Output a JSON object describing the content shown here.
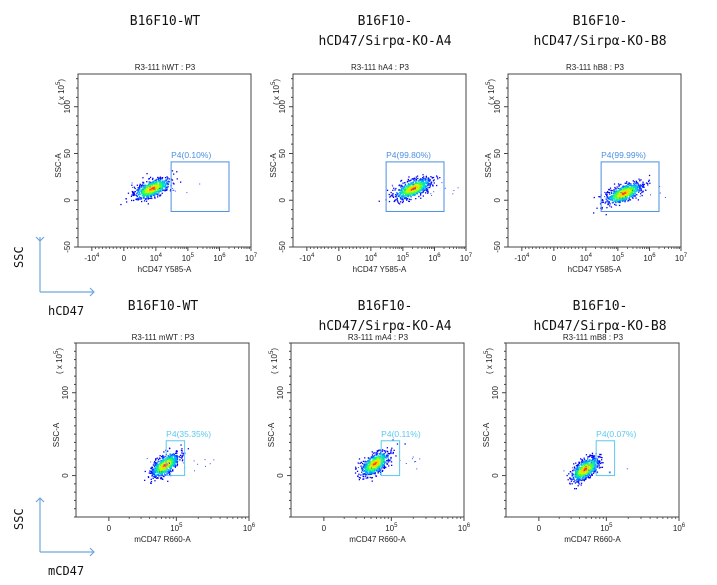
{
  "chart_data": [
    {
      "type": "scatter",
      "row": "hCD47",
      "title": "B16F10-WT",
      "subtitle": "R3-111 hWT : P3",
      "xlabel": "hCD47 Y585-A",
      "ylabel": "SSC-A",
      "y_multiplier_label": "(x 10^5)",
      "x_scale": "biexponential",
      "x_ticks": [
        "-10^4",
        "0",
        "10^4",
        "10^5",
        "10^6",
        "10^7"
      ],
      "y_ticks": [
        -50,
        0,
        50,
        100
      ],
      "ylim": [
        -50,
        135
      ],
      "gate": {
        "name": "P4",
        "percent": "0.10%",
        "label": "P4(0.10%)",
        "x_range": [
          "3x10^4",
          "2x10^6"
        ],
        "y_range": [
          -12,
          41
        ],
        "color": "#4a90e2"
      },
      "population_center": {
        "x": "4x10^3",
        "y": 13
      }
    },
    {
      "type": "scatter",
      "row": "hCD47",
      "title": "B16F10-\nhCD47/Sirpα-KO-A4",
      "subtitle": "R3-111 hA4 : P3",
      "xlabel": "hCD47 Y585-A",
      "ylabel": "SSC-A",
      "y_multiplier_label": "(x 10^5)",
      "x_scale": "biexponential",
      "x_ticks": [
        "-10^4",
        "0",
        "10^4",
        "10^5",
        "10^6",
        "10^7"
      ],
      "y_ticks": [
        -50,
        0,
        50,
        100
      ],
      "ylim": [
        -50,
        135
      ],
      "gate": {
        "name": "P4",
        "percent": "99.80%",
        "label": "P4(99.80%)",
        "x_range": [
          "3x10^4",
          "2x10^6"
        ],
        "y_range": [
          -12,
          41
        ],
        "color": "#4a90e2"
      },
      "population_center": {
        "x": "2x10^5",
        "y": 13
      }
    },
    {
      "type": "scatter",
      "row": "hCD47",
      "title": "B16F10-\nhCD47/Sirpα-KO-B8",
      "subtitle": "R3-111 hB8 : P3",
      "xlabel": "hCD47 Y585-A",
      "ylabel": "SSC-A",
      "y_multiplier_label": "(x 10^5)",
      "x_scale": "biexponential",
      "x_ticks": [
        "-10^4",
        "0",
        "10^4",
        "10^5",
        "10^6",
        "10^7"
      ],
      "y_ticks": [
        -50,
        0,
        50,
        100
      ],
      "ylim": [
        -50,
        135
      ],
      "gate": {
        "name": "P4",
        "percent": "99.99%",
        "label": "P4(99.99%)",
        "x_range": [
          "3x10^4",
          "2x10^6"
        ],
        "y_range": [
          -12,
          41
        ],
        "color": "#4a90e2"
      },
      "population_center": {
        "x": "1.5x10^5",
        "y": 8
      }
    },
    {
      "type": "scatter",
      "row": "mCD47",
      "title": "B16F10-WT",
      "subtitle": "R3-111 mWT : P3",
      "xlabel": "mCD47 R660-A",
      "ylabel": "SSC-A",
      "y_multiplier_label": "(x 10^5)",
      "x_scale": "biexponential",
      "x_ticks": [
        "0",
        "10^5",
        "10^6"
      ],
      "y_ticks": [
        0,
        100
      ],
      "ylim": [
        -50,
        160
      ],
      "gate": {
        "name": "P4",
        "percent": "35.35%",
        "label": "P4(35.35%)",
        "x_range": [
          "2.5x10^4",
          "1.3x10^5"
        ],
        "y_range": [
          0,
          42
        ],
        "color": "#5bc8ef"
      },
      "population_center": {
        "x": "2x10^4",
        "y": 13
      }
    },
    {
      "type": "scatter",
      "row": "mCD47",
      "title": "B16F10-\nhCD47/Sirpα-KO-A4",
      "subtitle": "R3-111 mA4 : P3",
      "xlabel": "mCD47 R660-A",
      "ylabel": "SSC-A",
      "y_multiplier_label": "(x 10^5)",
      "x_scale": "biexponential",
      "x_ticks": [
        "0",
        "10^5",
        "10^6"
      ],
      "y_ticks": [
        0,
        100
      ],
      "ylim": [
        -50,
        160
      ],
      "gate": {
        "name": "P4",
        "percent": "0.11%",
        "label": "P4(0.11%)",
        "x_range": [
          "2.5x10^4",
          "1.3x10^5"
        ],
        "y_range": [
          0,
          42
        ],
        "color": "#5bc8ef"
      },
      "population_center": {
        "x": "1x10^4",
        "y": 15
      }
    },
    {
      "type": "scatter",
      "row": "mCD47",
      "title": "B16F10-\nhCD47/Sirpα-KO-B8",
      "subtitle": "R3-111 mB8 : P3",
      "xlabel": "mCD47 R660-A",
      "ylabel": "SSC-A",
      "y_multiplier_label": "(x 10^5)",
      "x_scale": "biexponential",
      "x_ticks": [
        "0",
        "10^5",
        "10^6"
      ],
      "y_ticks": [
        0,
        100
      ],
      "ylim": [
        -50,
        160
      ],
      "gate": {
        "name": "P4",
        "percent": "0.07%",
        "label": "P4(0.07%)",
        "x_range": [
          "2.5x10^4",
          "1.3x10^5"
        ],
        "y_range": [
          0,
          42
        ],
        "color": "#5bc8ef"
      },
      "population_center": {
        "x": "5x10^3",
        "y": 8
      }
    }
  ],
  "row_legends": [
    {
      "y_axis": "SSC",
      "x_axis": "hCD47"
    },
    {
      "y_axis": "SSC",
      "x_axis": "mCD47"
    }
  ]
}
